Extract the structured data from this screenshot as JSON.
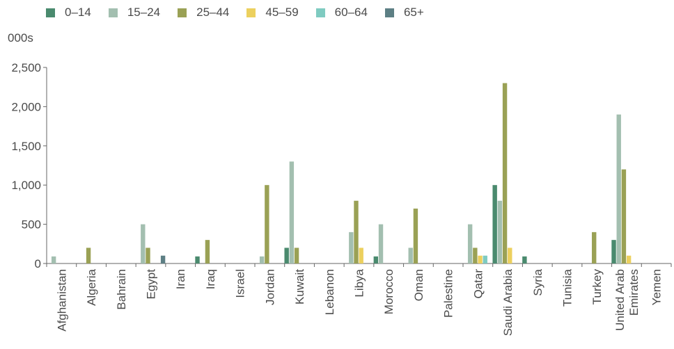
{
  "chart_data": {
    "type": "bar",
    "ylabel": "000s",
    "xlabel": "",
    "ylim": [
      0,
      2500
    ],
    "yticks": [
      "0",
      "500",
      "1,000",
      "1,500",
      "2,000",
      "2,500"
    ],
    "ytick_values": [
      0,
      500,
      1000,
      1500,
      2000,
      2500
    ],
    "legend_position": "top-left",
    "grid": false,
    "categories": [
      "Afghanistan",
      "Algeria",
      "Bahrain",
      "Egypt",
      "Iran",
      "Iraq",
      "Israel",
      "Jordan",
      "Kuwait",
      "Lebanon",
      "Libya",
      "Morocco",
      "Oman",
      "Palestine",
      "Qatar",
      "Saudi Arabia",
      "Syria",
      "Tunisia",
      "Turkey",
      "United Arab Emirates",
      "Yemen"
    ],
    "category_lines": [
      [
        "Afghanistan"
      ],
      [
        "Algeria"
      ],
      [
        "Bahrain"
      ],
      [
        "Egypt"
      ],
      [
        "Iran"
      ],
      [
        "Iraq"
      ],
      [
        "Israel"
      ],
      [
        "Jordan"
      ],
      [
        "Kuwait"
      ],
      [
        "Lebanon"
      ],
      [
        "Libya"
      ],
      [
        "Morocco"
      ],
      [
        "Oman"
      ],
      [
        "Palestine"
      ],
      [
        "Qatar"
      ],
      [
        "Saudi Arabia"
      ],
      [
        "Syria"
      ],
      [
        "Tunisia"
      ],
      [
        "Turkey"
      ],
      [
        "United Arab",
        "Emirates"
      ],
      [
        "Yemen"
      ]
    ],
    "series": [
      {
        "name": "0–14",
        "color": "#4a8a6e",
        "values": [
          0,
          0,
          0,
          0,
          0,
          90,
          0,
          0,
          200,
          0,
          0,
          90,
          0,
          0,
          0,
          1000,
          90,
          0,
          0,
          300,
          0
        ]
      },
      {
        "name": "15–24",
        "color": "#a3bfb0",
        "values": [
          90,
          0,
          0,
          500,
          0,
          0,
          0,
          90,
          1300,
          0,
          400,
          500,
          200,
          0,
          500,
          800,
          0,
          0,
          0,
          1900,
          0
        ]
      },
      {
        "name": "25–44",
        "color": "#9aa155",
        "values": [
          0,
          200,
          0,
          200,
          0,
          300,
          0,
          1000,
          200,
          0,
          800,
          0,
          700,
          0,
          200,
          2300,
          0,
          0,
          400,
          1200,
          0
        ]
      },
      {
        "name": "45–59",
        "color": "#ecd05e",
        "values": [
          0,
          0,
          0,
          0,
          0,
          0,
          0,
          0,
          0,
          0,
          200,
          0,
          0,
          0,
          100,
          200,
          0,
          0,
          0,
          100,
          0
        ]
      },
      {
        "name": "60–64",
        "color": "#7fcbc1",
        "values": [
          0,
          0,
          0,
          0,
          0,
          0,
          0,
          0,
          0,
          0,
          0,
          0,
          0,
          0,
          100,
          0,
          0,
          0,
          0,
          0,
          0
        ]
      },
      {
        "name": "65+",
        "color": "#5d7f84",
        "values": [
          0,
          0,
          0,
          100,
          0,
          0,
          0,
          0,
          0,
          0,
          0,
          0,
          0,
          0,
          0,
          0,
          0,
          0,
          0,
          0,
          0
        ]
      }
    ]
  }
}
